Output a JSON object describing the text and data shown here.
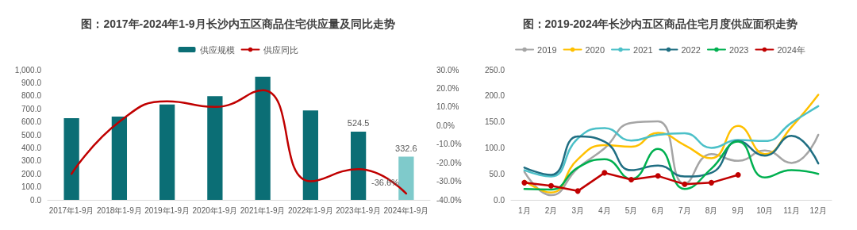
{
  "chart_data": [
    {
      "type": "bar",
      "title": "图：2017年-2024年1-9月长沙内五区商品住宅供应量及同比走势",
      "legend": "top",
      "grid": false,
      "categories": [
        "2017年1-9月",
        "2018年1-9月",
        "2019年1-9月",
        "2020年1-9月",
        "2021年1-9月",
        "2022年1-9月",
        "2023年1-9月",
        "2024年1-9月"
      ],
      "ylim": [
        0,
        1000
      ],
      "yticks": [
        {
          "value": 0,
          "label": "0.0"
        },
        {
          "value": 100,
          "label": "100.0"
        },
        {
          "value": 200,
          "label": "200.0"
        },
        {
          "value": 300,
          "label": "300.0"
        },
        {
          "value": 400,
          "label": "400.0"
        },
        {
          "value": 500,
          "label": "500.0"
        },
        {
          "value": 600,
          "label": "600.0"
        },
        {
          "value": 700,
          "label": "700.0"
        },
        {
          "value": 800,
          "label": "800.0"
        },
        {
          "value": 900,
          "label": "900.0"
        },
        {
          "value": 1000,
          "label": "1,000.0"
        }
      ],
      "y2lim": [
        -40,
        30
      ],
      "y2ticks": [
        {
          "value": -40,
          "label": "-40.0%"
        },
        {
          "value": -30,
          "label": "-30.0%"
        },
        {
          "value": -20,
          "label": "-20.0%"
        },
        {
          "value": -10,
          "label": "-10.0%"
        },
        {
          "value": 0,
          "label": "0.0%"
        },
        {
          "value": 10,
          "label": "10.0%"
        },
        {
          "value": 20,
          "label": "20.0%"
        },
        {
          "value": 30,
          "label": "30.0%"
        }
      ],
      "series": [
        {
          "name": "供应规模",
          "type": "bar",
          "color": "#0b6e75",
          "colors": [
            "#0b6e75",
            "#0b6e75",
            "#0b6e75",
            "#0b6e75",
            "#0b6e75",
            "#0b6e75",
            "#0b6e75",
            "#7fcacb"
          ],
          "values": [
            628,
            641,
            733,
            798,
            946,
            688,
            524.5,
            332.6
          ],
          "value_labels": [
            null,
            null,
            null,
            null,
            null,
            null,
            "524.5",
            "332.6"
          ]
        },
        {
          "name": "供应同比",
          "type": "line",
          "axis": "y2",
          "color": "#c00000",
          "marker": "none",
          "values": [
            -26,
            2,
            13,
            10,
            19,
            -30,
            -23.5,
            -36.6
          ],
          "value_labels": [
            null,
            null,
            null,
            null,
            null,
            null,
            null,
            "-36.6%"
          ]
        }
      ]
    },
    {
      "type": "line",
      "title": "图：2019-2024年长沙内五区商品住宅月度供应面积走势",
      "legend": "top",
      "grid": false,
      "categories": [
        "1月",
        "2月",
        "3月",
        "4月",
        "5月",
        "6月",
        "7月",
        "8月",
        "9月",
        "10月",
        "11月",
        "12月"
      ],
      "ylim": [
        0,
        250
      ],
      "yticks": [
        {
          "value": 0,
          "label": "0.0"
        },
        {
          "value": 50,
          "label": "50.0"
        },
        {
          "value": 100,
          "label": "100.0"
        },
        {
          "value": 150,
          "label": "150.0"
        },
        {
          "value": 200,
          "label": "200.0"
        },
        {
          "value": 250,
          "label": "250.0"
        }
      ],
      "series": [
        {
          "name": "2019",
          "color": "#a5a5a5",
          "marker": "none",
          "values": [
            54,
            9,
            61,
            99,
            148,
            151,
            31,
            88,
            75,
            95,
            71,
            125
          ]
        },
        {
          "name": "2020",
          "color": "#ffc000",
          "marker": "none",
          "values": [
            37,
            14,
            78,
            105,
            102,
            129,
            105,
            80,
            142,
            88,
            140,
            202
          ]
        },
        {
          "name": "2021",
          "color": "#4bc0c8",
          "marker": "none",
          "values": [
            57,
            45,
            118,
            138,
            114,
            125,
            128,
            100,
            115,
            113,
            148,
            180
          ]
        },
        {
          "name": "2022",
          "color": "#1f6e82",
          "marker": "none",
          "values": [
            62,
            48,
            122,
            112,
            57,
            66,
            45,
            52,
            113,
            85,
            123,
            70
          ]
        },
        {
          "name": "2023",
          "color": "#00b050",
          "marker": "none",
          "values": [
            21,
            20,
            62,
            78,
            40,
            98,
            21,
            60,
            112,
            43,
            57,
            50
          ]
        },
        {
          "name": "2024年",
          "color": "#c00000",
          "marker": "circle",
          "values": [
            33,
            27,
            17,
            52,
            39,
            46,
            30,
            33,
            48,
            null,
            null,
            null
          ]
        }
      ]
    }
  ]
}
